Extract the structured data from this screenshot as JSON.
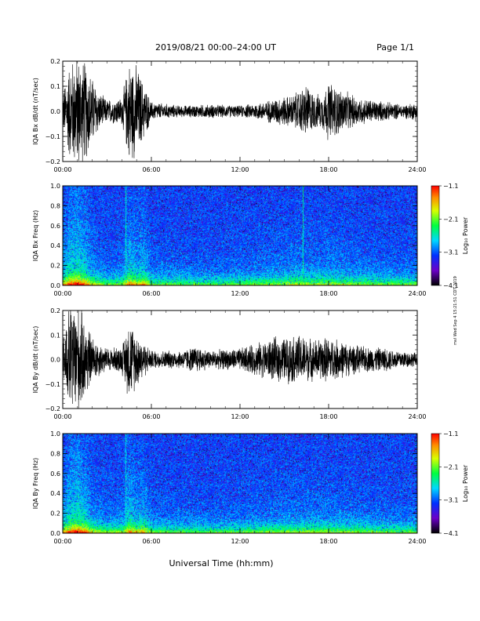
{
  "header": {
    "title": "2019/08/21   00:00–24:00 UT",
    "page": "Page 1/1"
  },
  "side_note": "mvl Wed Sep 4 15:21:51 CDT 2019",
  "xlabel": "Universal Time (hh:mm)",
  "chart_data": [
    {
      "type": "line",
      "ylabel": "IQA Bx dB/dt (nT/sec)",
      "xlim": [
        0,
        24
      ],
      "ylim": [
        -0.2,
        0.2
      ],
      "xticks": [
        "00:00",
        "06:00",
        "12:00",
        "18:00",
        "24:00"
      ],
      "yticks": [
        "−0.2",
        "−0.1",
        "0.0",
        "0.1",
        "0.2"
      ],
      "yticks_values": [
        -0.2,
        -0.1,
        0.0,
        0.1,
        0.2
      ],
      "envelope_x": [
        0,
        0.5,
        1.0,
        1.5,
        2.0,
        2.5,
        3.0,
        4.0,
        4.5,
        5.0,
        5.5,
        6.0,
        8.0,
        10.0,
        12.0,
        13.5,
        14.5,
        15.5,
        16.0,
        16.5,
        17.0,
        17.5,
        18.0,
        19.0,
        20.0,
        21.0,
        22.0,
        23.0,
        24.0
      ],
      "envelope_amp": [
        0.08,
        0.22,
        0.25,
        0.22,
        0.15,
        0.08,
        0.05,
        0.06,
        0.22,
        0.2,
        0.12,
        0.04,
        0.025,
        0.03,
        0.025,
        0.04,
        0.06,
        0.07,
        0.09,
        0.12,
        0.08,
        0.07,
        0.13,
        0.09,
        0.06,
        0.05,
        0.04,
        0.03,
        0.04
      ]
    },
    {
      "type": "heatmap",
      "ylabel": "IQA Bx Freq (Hz)",
      "xlim": [
        0,
        24
      ],
      "ylim": [
        0,
        1.0
      ],
      "xticks": [
        "00:00",
        "06:00",
        "12:00",
        "18:00",
        "24:00"
      ],
      "yticks": [
        "0.0",
        "0.2",
        "0.4",
        "0.6",
        "0.8",
        "1.0"
      ],
      "yticks_values": [
        0.0,
        0.2,
        0.4,
        0.6,
        0.8,
        1.0
      ],
      "colorbar": {
        "label": "Log₁₀ Power",
        "range": [
          -4.1,
          -1.1
        ],
        "ticks": [
          "−1.1",
          "−2.1",
          "−3.1",
          "−4.1"
        ],
        "ticks_values": [
          -1.1,
          -2.1,
          -3.1,
          -4.1
        ]
      },
      "activity_x": [
        0,
        0.5,
        1.0,
        1.5,
        2.0,
        3.0,
        4.0,
        4.5,
        5.0,
        5.5,
        6.0,
        10.0,
        14.0,
        16.0,
        17.0,
        18.0,
        20.0,
        22.0,
        24.0
      ],
      "activity": [
        0.6,
        0.9,
        1.0,
        0.8,
        0.5,
        0.3,
        0.35,
        0.8,
        0.6,
        0.7,
        0.3,
        0.25,
        0.35,
        0.45,
        0.4,
        0.45,
        0.35,
        0.3,
        0.3
      ],
      "spikes": [
        {
          "x": 4.25,
          "strength": 0.8
        },
        {
          "x": 16.3,
          "strength": 0.9
        }
      ]
    },
    {
      "type": "line",
      "ylabel": "IQA By dB/dt (nT/sec)",
      "xlim": [
        0,
        24
      ],
      "ylim": [
        -0.2,
        0.2
      ],
      "xticks": [
        "00:00",
        "06:00",
        "12:00",
        "18:00",
        "24:00"
      ],
      "yticks": [
        "−0.2",
        "−0.1",
        "0.0",
        "0.1",
        "0.2"
      ],
      "yticks_values": [
        -0.2,
        -0.1,
        0.0,
        0.1,
        0.2
      ],
      "envelope_x": [
        0,
        0.5,
        1.0,
        1.5,
        2.0,
        3.0,
        4.0,
        4.5,
        5.0,
        5.5,
        6.0,
        8.0,
        9.0,
        10.0,
        12.0,
        13.0,
        14.0,
        14.5,
        15.0,
        16.0,
        16.5,
        17.0,
        18.0,
        19.0,
        20.0,
        22.0,
        23.0,
        24.0
      ],
      "envelope_amp": [
        0.1,
        0.25,
        0.25,
        0.18,
        0.1,
        0.05,
        0.06,
        0.18,
        0.12,
        0.08,
        0.04,
        0.04,
        0.06,
        0.04,
        0.05,
        0.07,
        0.09,
        0.1,
        0.1,
        0.11,
        0.1,
        0.09,
        0.1,
        0.08,
        0.06,
        0.05,
        0.04,
        0.03
      ]
    },
    {
      "type": "heatmap",
      "ylabel": "IQA By Freq (Hz)",
      "xlim": [
        0,
        24
      ],
      "ylim": [
        0,
        1.0
      ],
      "xticks": [
        "00:00",
        "06:00",
        "12:00",
        "18:00",
        "24:00"
      ],
      "yticks": [
        "0.0",
        "0.2",
        "0.4",
        "0.6",
        "0.8",
        "1.0"
      ],
      "yticks_values": [
        0.0,
        0.2,
        0.4,
        0.6,
        0.8,
        1.0
      ],
      "colorbar": {
        "label": "Log₁₀ Power",
        "range": [
          -4.1,
          -1.1
        ],
        "ticks": [
          "−1.1",
          "−2.1",
          "−3.1",
          "−4.1"
        ],
        "ticks_values": [
          -1.1,
          -2.1,
          -3.1,
          -4.1
        ]
      },
      "activity_x": [
        0,
        0.5,
        1.0,
        1.5,
        2.0,
        3.0,
        4.0,
        4.5,
        5.0,
        5.5,
        6.0,
        10.0,
        14.0,
        16.0,
        17.0,
        18.0,
        20.0,
        22.0,
        24.0
      ],
      "activity": [
        0.6,
        0.9,
        1.0,
        0.8,
        0.5,
        0.35,
        0.4,
        0.8,
        0.6,
        0.65,
        0.3,
        0.25,
        0.35,
        0.4,
        0.4,
        0.4,
        0.35,
        0.3,
        0.3
      ],
      "spikes": [
        {
          "x": 4.25,
          "strength": 0.7
        }
      ]
    }
  ]
}
